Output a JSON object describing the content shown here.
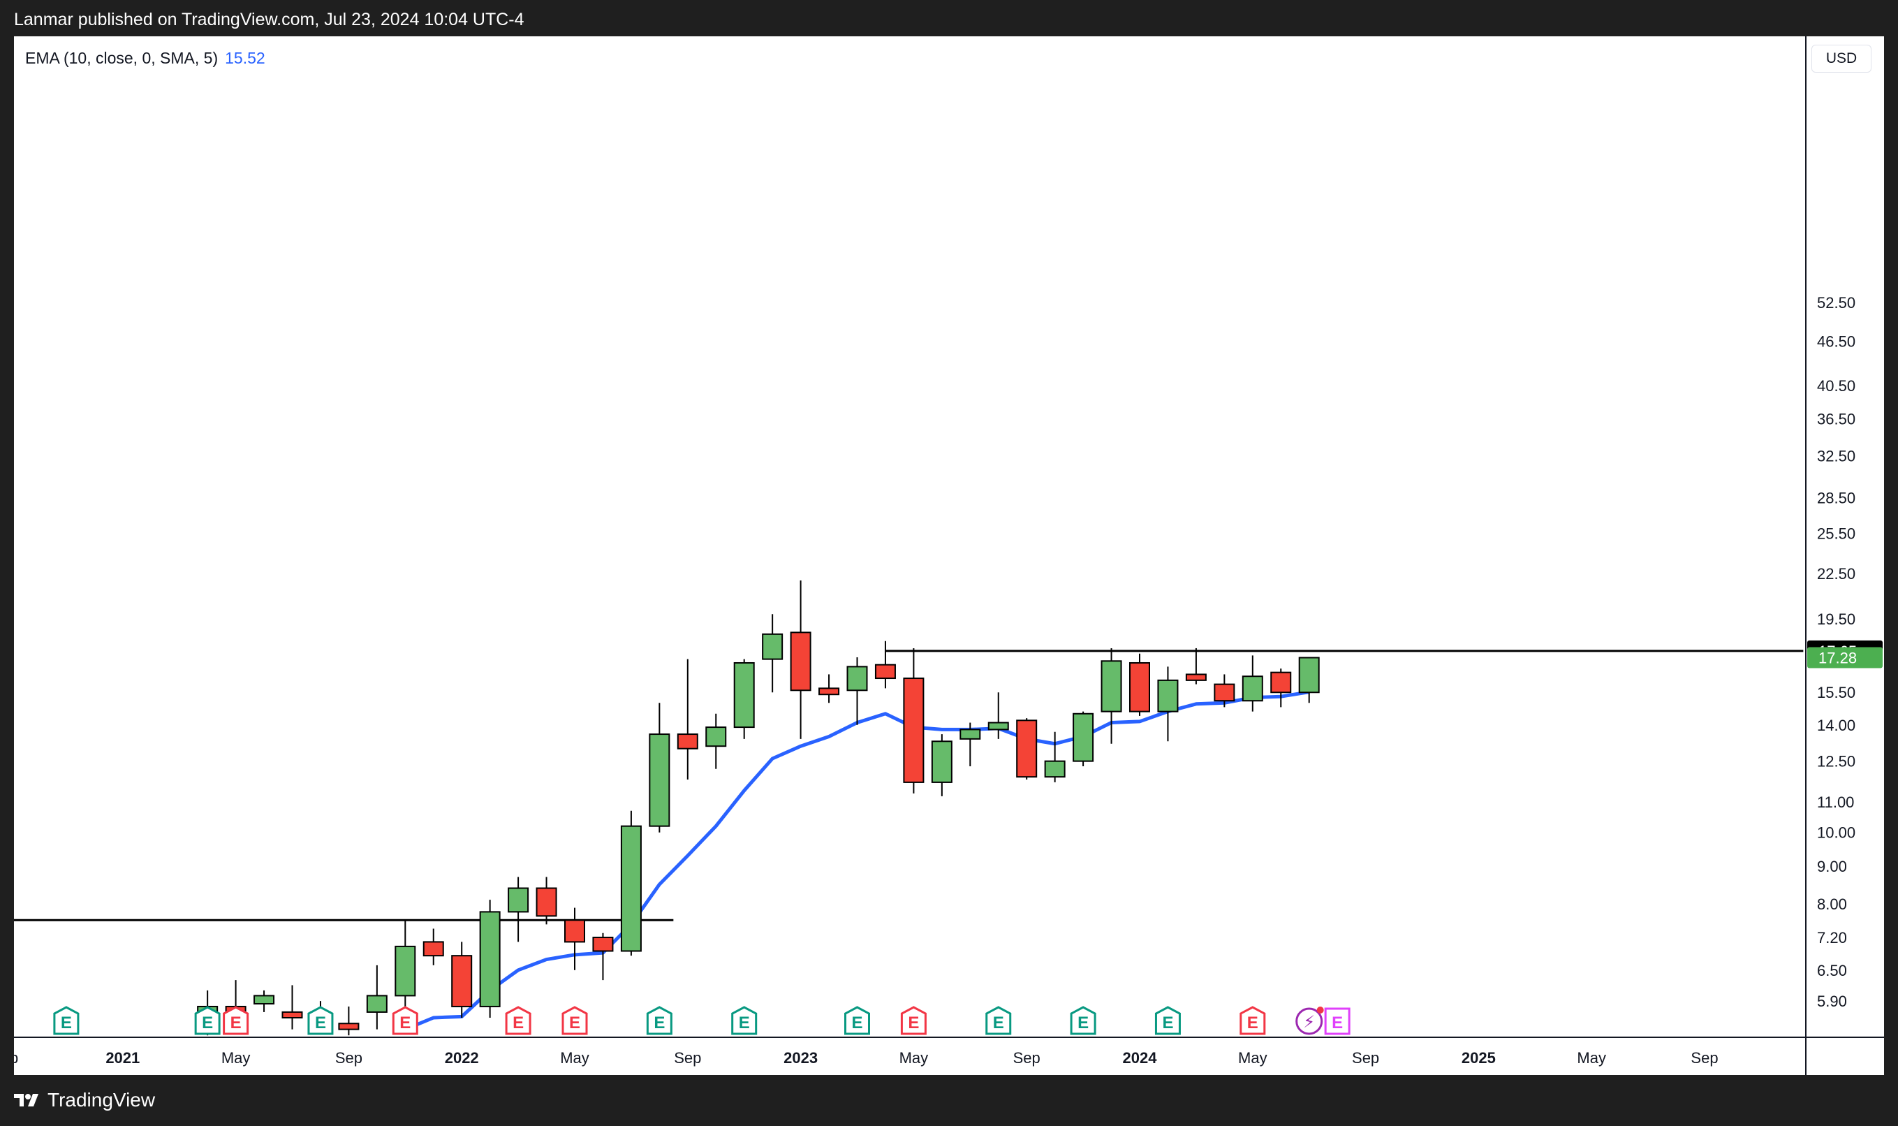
{
  "header": {
    "caption": "Lanmar published on TradingView.com, Jul 23, 2024 10:04 UTC-4"
  },
  "footer": {
    "brand": "TradingView"
  },
  "legend": {
    "label": "EMA (10, close, 0, SMA, 5)",
    "value": "15.52",
    "value_color": "#2962ff"
  },
  "price_scale": {
    "currency": "USD",
    "ticks": [
      "52.50",
      "46.50",
      "40.50",
      "36.50",
      "32.50",
      "28.50",
      "25.50",
      "22.50",
      "19.50",
      "15.50",
      "14.00",
      "12.50",
      "11.00",
      "10.00",
      "9.00",
      "8.00",
      "7.20",
      "6.50",
      "5.90"
    ],
    "badges": [
      {
        "label": "17.65",
        "value": 17.65,
        "bg": "#000000",
        "fg": "#ffffff"
      },
      {
        "label": "17.28",
        "value": 17.28,
        "bg": "#4caf50",
        "fg": "#ffffff"
      }
    ]
  },
  "time_scale": {
    "labels": [
      {
        "t": "ep",
        "date": "2020-09",
        "bold": false
      },
      {
        "t": "2021",
        "date": "2021-01",
        "bold": true
      },
      {
        "t": "May",
        "date": "2021-05",
        "bold": false
      },
      {
        "t": "Sep",
        "date": "2021-09",
        "bold": false
      },
      {
        "t": "2022",
        "date": "2022-01",
        "bold": true
      },
      {
        "t": "May",
        "date": "2022-05",
        "bold": false
      },
      {
        "t": "Sep",
        "date": "2022-09",
        "bold": false
      },
      {
        "t": "2023",
        "date": "2023-01",
        "bold": true
      },
      {
        "t": "May",
        "date": "2023-05",
        "bold": false
      },
      {
        "t": "Sep",
        "date": "2023-09",
        "bold": false
      },
      {
        "t": "2024",
        "date": "2024-01",
        "bold": true
      },
      {
        "t": "May",
        "date": "2024-05",
        "bold": false
      },
      {
        "t": "Sep",
        "date": "2024-09",
        "bold": false
      },
      {
        "t": "2025",
        "date": "2025-01",
        "bold": true
      },
      {
        "t": "May",
        "date": "2025-05",
        "bold": false
      },
      {
        "t": "Sep",
        "date": "2025-09",
        "bold": false
      }
    ]
  },
  "colors": {
    "up": "#66bb6a",
    "down": "#f44336",
    "ema": "#2962ff",
    "earnings_up": "#089981",
    "earnings_down": "#f23645",
    "event": "#9c27b0",
    "event_alt": "#e040fb"
  },
  "chart_data": {
    "type": "candlestick",
    "interval": "1M",
    "scale": "log",
    "ylim": [
      5.6,
      58
    ],
    "xlim": [
      "2020-09",
      "2025-12"
    ],
    "candles": [
      {
        "date": "2021-04",
        "o": 5.5,
        "h": 6.1,
        "l": 5.3,
        "c": 5.8
      },
      {
        "date": "2021-05",
        "o": 5.8,
        "h": 6.3,
        "l": 5.5,
        "c": 5.65
      },
      {
        "date": "2021-06",
        "o": 5.85,
        "h": 6.1,
        "l": 5.7,
        "c": 6.0
      },
      {
        "date": "2021-07",
        "o": 5.7,
        "h": 6.2,
        "l": 5.4,
        "c": 5.6
      },
      {
        "date": "2021-08",
        "o": 5.7,
        "h": 5.9,
        "l": 5.4,
        "c": 5.5
      },
      {
        "date": "2021-09",
        "o": 5.5,
        "h": 5.8,
        "l": 5.3,
        "c": 5.4
      },
      {
        "date": "2021-10",
        "o": 5.7,
        "h": 6.6,
        "l": 5.4,
        "c": 6.0
      },
      {
        "date": "2021-11",
        "o": 6.0,
        "h": 7.6,
        "l": 5.8,
        "c": 7.0
      },
      {
        "date": "2021-12",
        "o": 7.1,
        "h": 7.4,
        "l": 6.6,
        "c": 6.8
      },
      {
        "date": "2022-01",
        "o": 6.8,
        "h": 7.1,
        "l": 5.6,
        "c": 5.8
      },
      {
        "date": "2022-02",
        "o": 5.8,
        "h": 8.1,
        "l": 5.6,
        "c": 7.8
      },
      {
        "date": "2022-03",
        "o": 7.8,
        "h": 8.7,
        "l": 7.1,
        "c": 8.4
      },
      {
        "date": "2022-04",
        "o": 8.4,
        "h": 8.7,
        "l": 7.5,
        "c": 7.7
      },
      {
        "date": "2022-05",
        "o": 7.6,
        "h": 7.9,
        "l": 6.5,
        "c": 7.1
      },
      {
        "date": "2022-06",
        "o": 7.2,
        "h": 7.3,
        "l": 6.3,
        "c": 6.9
      },
      {
        "date": "2022-07",
        "o": 6.9,
        "h": 10.7,
        "l": 6.8,
        "c": 10.2
      },
      {
        "date": "2022-08",
        "o": 10.2,
        "h": 15.0,
        "l": 10.0,
        "c": 13.6
      },
      {
        "date": "2022-09",
        "o": 13.6,
        "h": 17.2,
        "l": 11.8,
        "c": 13.0
      },
      {
        "date": "2022-10",
        "o": 13.1,
        "h": 14.5,
        "l": 12.2,
        "c": 13.9
      },
      {
        "date": "2022-11",
        "o": 13.9,
        "h": 17.2,
        "l": 13.4,
        "c": 17.0
      },
      {
        "date": "2022-12",
        "o": 17.2,
        "h": 19.8,
        "l": 15.5,
        "c": 18.6
      },
      {
        "date": "2023-01",
        "o": 18.7,
        "h": 22.0,
        "l": 13.4,
        "c": 15.6
      },
      {
        "date": "2023-02",
        "o": 15.7,
        "h": 16.4,
        "l": 15.0,
        "c": 15.4
      },
      {
        "date": "2023-03",
        "o": 15.6,
        "h": 17.3,
        "l": 14.0,
        "c": 16.8
      },
      {
        "date": "2023-04",
        "o": 16.9,
        "h": 18.2,
        "l": 15.7,
        "c": 16.2
      },
      {
        "date": "2023-05",
        "o": 16.2,
        "h": 17.8,
        "l": 11.3,
        "c": 11.7
      },
      {
        "date": "2023-06",
        "o": 11.7,
        "h": 13.6,
        "l": 11.2,
        "c": 13.3
      },
      {
        "date": "2023-07",
        "o": 13.4,
        "h": 14.1,
        "l": 12.3,
        "c": 13.8
      },
      {
        "date": "2023-08",
        "o": 13.8,
        "h": 15.5,
        "l": 13.4,
        "c": 14.1
      },
      {
        "date": "2023-09",
        "o": 14.2,
        "h": 14.3,
        "l": 11.8,
        "c": 11.9
      },
      {
        "date": "2023-10",
        "o": 11.9,
        "h": 13.7,
        "l": 11.7,
        "c": 12.5
      },
      {
        "date": "2023-11",
        "o": 12.5,
        "h": 14.6,
        "l": 12.3,
        "c": 14.5
      },
      {
        "date": "2023-12",
        "o": 14.6,
        "h": 17.8,
        "l": 13.2,
        "c": 17.1
      },
      {
        "date": "2024-01",
        "o": 17.0,
        "h": 17.5,
        "l": 14.4,
        "c": 14.6
      },
      {
        "date": "2024-02",
        "o": 14.6,
        "h": 16.8,
        "l": 13.3,
        "c": 16.1
      },
      {
        "date": "2024-03",
        "o": 16.4,
        "h": 17.8,
        "l": 15.9,
        "c": 16.1
      },
      {
        "date": "2024-04",
        "o": 15.9,
        "h": 16.4,
        "l": 14.8,
        "c": 15.1
      },
      {
        "date": "2024-05",
        "o": 15.1,
        "h": 17.4,
        "l": 14.6,
        "c": 16.3
      },
      {
        "date": "2024-06",
        "o": 16.5,
        "h": 16.7,
        "l": 14.8,
        "c": 15.5
      },
      {
        "date": "2024-07",
        "o": 15.5,
        "h": 17.3,
        "l": 15.0,
        "c": 17.28
      }
    ],
    "ema": {
      "name": "EMA (10, close, 0, SMA, 5)",
      "points": [
        {
          "date": "2021-11",
          "v": 5.4
        },
        {
          "date": "2021-12",
          "v": 5.6
        },
        {
          "date": "2022-01",
          "v": 5.62
        },
        {
          "date": "2022-02",
          "v": 6.1
        },
        {
          "date": "2022-03",
          "v": 6.5
        },
        {
          "date": "2022-04",
          "v": 6.72
        },
        {
          "date": "2022-05",
          "v": 6.82
        },
        {
          "date": "2022-06",
          "v": 6.86
        },
        {
          "date": "2022-07",
          "v": 7.5
        },
        {
          "date": "2022-08",
          "v": 8.5
        },
        {
          "date": "2022-09",
          "v": 9.3
        },
        {
          "date": "2022-10",
          "v": 10.2
        },
        {
          "date": "2022-11",
          "v": 11.4
        },
        {
          "date": "2022-12",
          "v": 12.6
        },
        {
          "date": "2023-01",
          "v": 13.1
        },
        {
          "date": "2023-02",
          "v": 13.5
        },
        {
          "date": "2023-03",
          "v": 14.1
        },
        {
          "date": "2023-04",
          "v": 14.5
        },
        {
          "date": "2023-05",
          "v": 13.9
        },
        {
          "date": "2023-06",
          "v": 13.8
        },
        {
          "date": "2023-07",
          "v": 13.8
        },
        {
          "date": "2023-08",
          "v": 13.85
        },
        {
          "date": "2023-09",
          "v": 13.4
        },
        {
          "date": "2023-10",
          "v": 13.2
        },
        {
          "date": "2023-11",
          "v": 13.5
        },
        {
          "date": "2023-12",
          "v": 14.1
        },
        {
          "date": "2024-01",
          "v": 14.15
        },
        {
          "date": "2024-02",
          "v": 14.6
        },
        {
          "date": "2024-03",
          "v": 14.95
        },
        {
          "date": "2024-04",
          "v": 15.0
        },
        {
          "date": "2024-05",
          "v": 15.25
        },
        {
          "date": "2024-06",
          "v": 15.3
        },
        {
          "date": "2024-07",
          "v": 15.52
        }
      ]
    },
    "horizontal_lines": [
      {
        "value": 7.6,
        "from": "2020-09",
        "to": "2022-08"
      },
      {
        "value": 17.65,
        "from": "2023-04",
        "to": "2025-12"
      }
    ],
    "events": [
      {
        "date": "2020-11",
        "kind": "earnings",
        "label": "E",
        "direction": "up"
      },
      {
        "date": "2021-04",
        "kind": "earnings",
        "label": "E",
        "direction": "up"
      },
      {
        "date": "2021-05",
        "kind": "earnings",
        "label": "E",
        "direction": "down"
      },
      {
        "date": "2021-08",
        "kind": "earnings",
        "label": "E",
        "direction": "up"
      },
      {
        "date": "2021-11",
        "kind": "earnings",
        "label": "E",
        "direction": "down"
      },
      {
        "date": "2022-03",
        "kind": "earnings",
        "label": "E",
        "direction": "down"
      },
      {
        "date": "2022-05",
        "kind": "earnings",
        "label": "E",
        "direction": "down"
      },
      {
        "date": "2022-08",
        "kind": "earnings",
        "label": "E",
        "direction": "up"
      },
      {
        "date": "2022-11",
        "kind": "earnings",
        "label": "E",
        "direction": "up"
      },
      {
        "date": "2023-03",
        "kind": "earnings",
        "label": "E",
        "direction": "up"
      },
      {
        "date": "2023-05",
        "kind": "earnings",
        "label": "E",
        "direction": "down"
      },
      {
        "date": "2023-08",
        "kind": "earnings",
        "label": "E",
        "direction": "up"
      },
      {
        "date": "2023-11",
        "kind": "earnings",
        "label": "E",
        "direction": "up"
      },
      {
        "date": "2024-02",
        "kind": "earnings",
        "label": "E",
        "direction": "up"
      },
      {
        "date": "2024-05",
        "kind": "earnings",
        "label": "E",
        "direction": "down"
      },
      {
        "date": "2024-07",
        "kind": "event",
        "label": "⚡",
        "direction": "event"
      },
      {
        "date": "2024-08",
        "kind": "earnings",
        "label": "E",
        "direction": "upcoming"
      }
    ]
  }
}
